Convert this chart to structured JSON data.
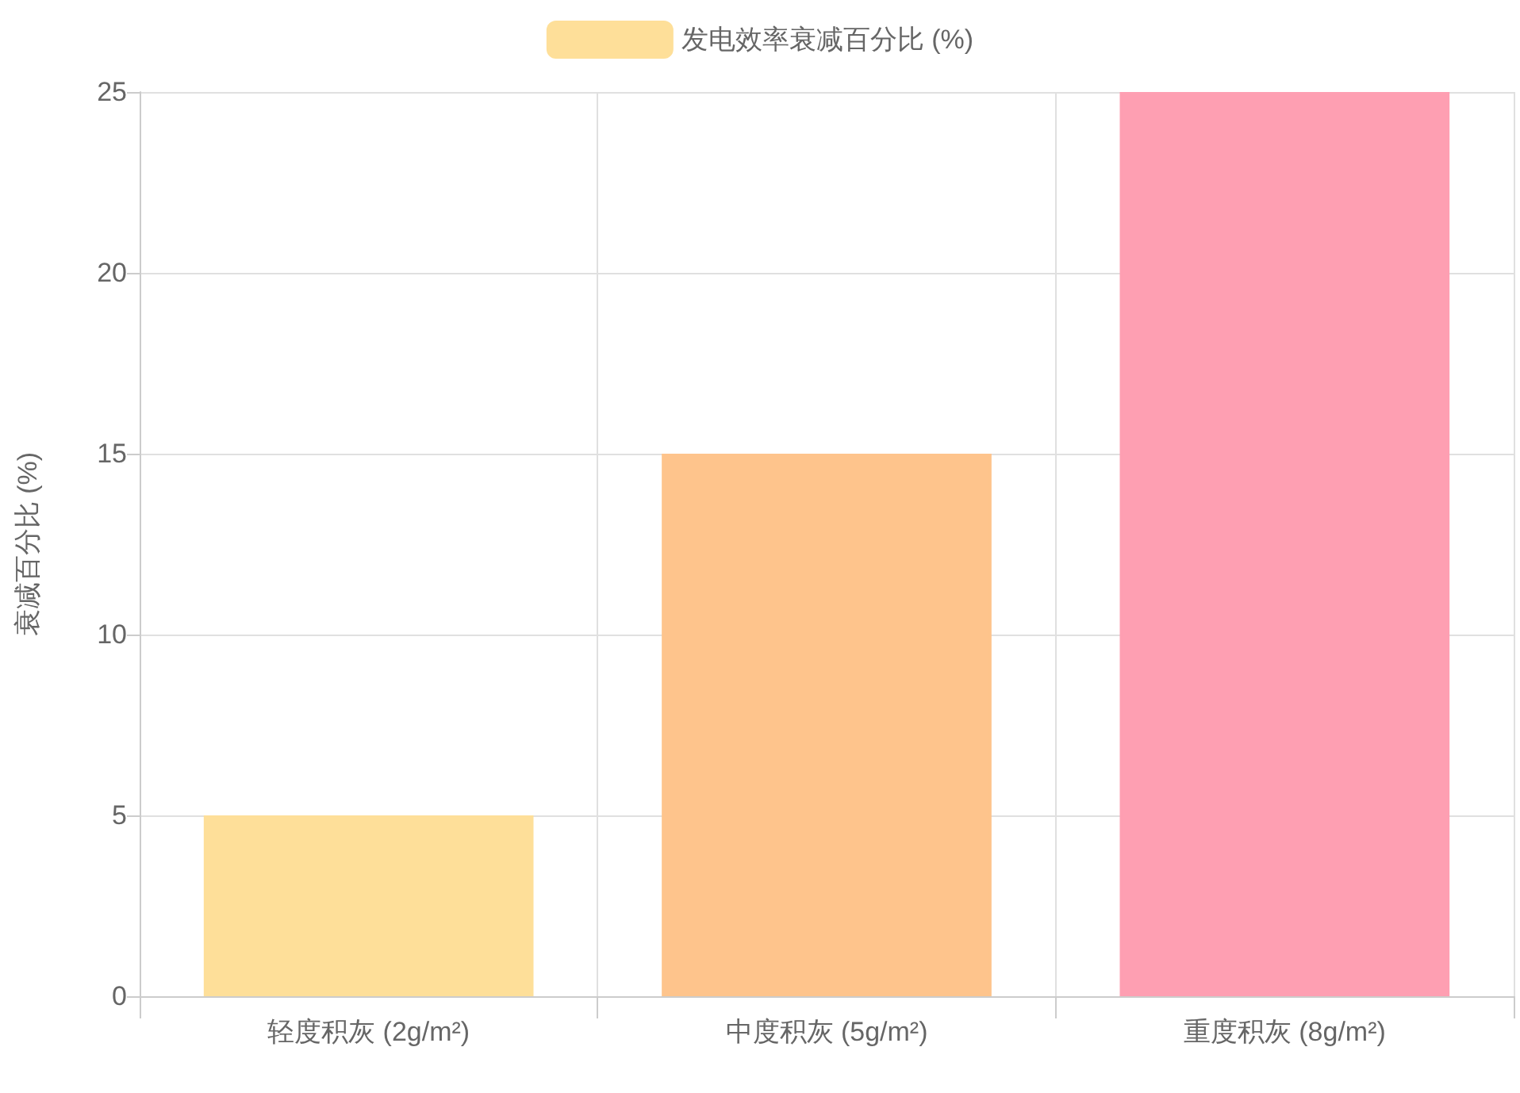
{
  "chart_data": {
    "type": "bar",
    "ylabel": "衰减百分比 (%)",
    "categories": [
      "轻度积灰 (2g/m²)",
      "中度积灰 (5g/m²)",
      "重度积灰 (8g/m²)"
    ],
    "series": [
      {
        "name": "发电效率衰减百分比 (%)",
        "color": "#fedf99",
        "colors": [
          "#fedf99",
          "#fec48c",
          "#fe9fb2"
        ],
        "values": [
          5,
          15,
          25
        ]
      }
    ],
    "ylim": [
      0,
      25
    ],
    "yticks": [
      0,
      5,
      10,
      15,
      20,
      25
    ],
    "grid": true,
    "legend": "top"
  }
}
